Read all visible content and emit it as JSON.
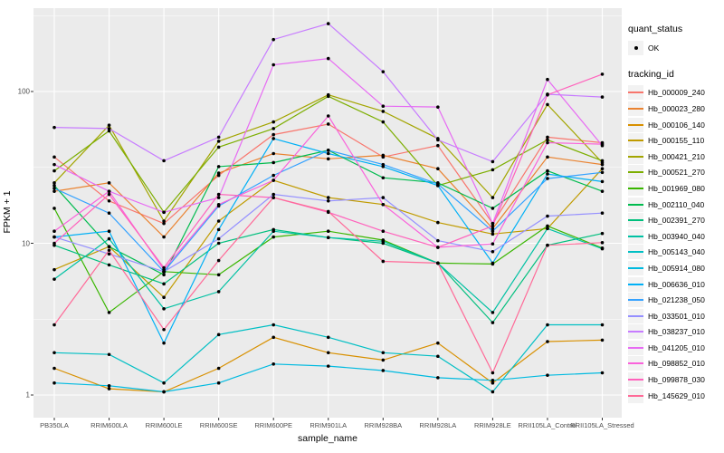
{
  "figure": {
    "background": "#FFFFFF",
    "panel_background": "#EBEBEB",
    "gridline_color": "#FFFFFF",
    "tick_color": "#333333",
    "tick_label_color": "#4D4D4D",
    "point_color": "#000000"
  },
  "y_axis": {
    "title": "FPKM + 1",
    "tick_labels": [
      "1",
      "10",
      "100"
    ]
  },
  "x_axis": {
    "title": "sample_name"
  },
  "legend": {
    "quant_status_title": "quant_status",
    "quant_status_items": [
      {
        "label": "OK",
        "marker": "black-point"
      }
    ],
    "tracking_title": "tracking_id"
  },
  "chart_data": {
    "type": "line",
    "title": "",
    "xlabel": "sample_name",
    "ylabel": "FPKM + 1",
    "y_scale": "log10",
    "y_ticks": [
      1,
      10,
      100
    ],
    "y_minor_ticks": [
      3.1623,
      31.623,
      316.23
    ],
    "ylim": [
      1,
      355
    ],
    "grid": true,
    "legend_position": "right",
    "marker": {
      "shape": "point",
      "color": "#000000",
      "meaning": "quant_status OK"
    },
    "categories": [
      "PB350LA",
      "RRIM600LA",
      "RRIM600LE",
      "RRIM600SE",
      "RRIM600PE",
      "RRIM901LA",
      "RRIM928BA",
      "RRIM928LA",
      "RRIM928LE",
      "RRII105LA_Control",
      "RRII105LA_Stressed"
    ],
    "series": [
      {
        "name": "Hb_000009_240",
        "color": "#F8766D",
        "values": [
          37,
          19,
          13.5,
          28,
          52,
          61,
          37,
          44,
          13.5,
          50,
          46
        ]
      },
      {
        "name": "Hb_000023_280",
        "color": "#EA8331",
        "values": [
          22,
          25,
          11,
          29,
          39,
          36,
          38,
          31,
          12.5,
          37,
          33
        ]
      },
      {
        "name": "Hb_000106_140",
        "color": "#D89000",
        "values": [
          1.5,
          1.1,
          1.05,
          1.5,
          2.4,
          1.9,
          1.7,
          2.2,
          1.2,
          2.25,
          2.3
        ]
      },
      {
        "name": "Hb_000155_110",
        "color": "#C09B00",
        "values": [
          6.7,
          9.5,
          4.4,
          14,
          26,
          20,
          18,
          13.7,
          11.5,
          12.5,
          31
        ]
      },
      {
        "name": "Hb_000421_210",
        "color": "#A3A500",
        "values": [
          25,
          60,
          14,
          47,
          63,
          95,
          74,
          49,
          20,
          82,
          34
        ]
      },
      {
        "name": "Hb_000521_270",
        "color": "#7CAE00",
        "values": [
          30,
          55,
          16,
          43,
          57,
          93,
          63,
          24,
          30.5,
          48,
          35
        ]
      },
      {
        "name": "Hb_001969_080",
        "color": "#39B600",
        "values": [
          17,
          3.5,
          6.5,
          6.2,
          11,
          12,
          10.5,
          7.4,
          7.3,
          13,
          9.3
        ]
      },
      {
        "name": "Hb_002110_040",
        "color": "#00BB4E",
        "values": [
          24,
          9.5,
          6.2,
          32,
          34,
          41,
          27,
          25,
          17,
          30,
          22
        ]
      },
      {
        "name": "Hb_002391_270",
        "color": "#00BF7D",
        "values": [
          9.7,
          7.2,
          5.4,
          10,
          12.3,
          10.9,
          10,
          7.4,
          3.0,
          9.7,
          11.6
        ]
      },
      {
        "name": "Hb_003940_040",
        "color": "#00C1A3",
        "values": [
          5.8,
          10.7,
          3.7,
          4.8,
          12,
          10.9,
          10.3,
          7.4,
          3.5,
          12.5,
          9.2
        ]
      },
      {
        "name": "Hb_005143_040",
        "color": "#00BFC4",
        "values": [
          1.9,
          1.85,
          1.2,
          2.5,
          2.9,
          2.4,
          1.9,
          1.8,
          1.05,
          2.9,
          2.9
        ]
      },
      {
        "name": "Hb_005914_080",
        "color": "#00BAE0",
        "values": [
          1.2,
          1.15,
          1.05,
          1.2,
          1.6,
          1.55,
          1.45,
          1.3,
          1.25,
          1.35,
          1.4
        ]
      },
      {
        "name": "Hb_006636_010",
        "color": "#00B0F6",
        "values": [
          11,
          12,
          2.2,
          12.3,
          49,
          39,
          32,
          24,
          7.4,
          28.6,
          25.5
        ]
      },
      {
        "name": "Hb_021238_050",
        "color": "#35A2FF",
        "values": [
          23,
          15.8,
          6.5,
          17.6,
          28,
          41,
          33,
          24.6,
          12,
          26.7,
          29.3
        ]
      },
      {
        "name": "Hb_033501_010",
        "color": "#9590FF",
        "values": [
          11,
          8.5,
          6.5,
          10.7,
          21,
          19,
          20,
          10.4,
          8.8,
          15.1,
          15.8
        ]
      },
      {
        "name": "Hb_038237_010",
        "color": "#C77CFF",
        "values": [
          58,
          57,
          35,
          50,
          220,
          280,
          135,
          48,
          34.5,
          96,
          92
        ]
      },
      {
        "name": "Hb_041205_010",
        "color": "#E76BF3",
        "values": [
          33,
          22,
          16,
          20,
          150,
          165,
          80,
          79,
          13.5,
          120,
          44
        ]
      },
      {
        "name": "Hb_098852_010",
        "color": "#FA62DB",
        "values": [
          12,
          22,
          6.7,
          18,
          26,
          69,
          18,
          9.4,
          9.9,
          46,
          45
        ]
      },
      {
        "name": "Hb_099878_030",
        "color": "#FF62BC",
        "values": [
          10,
          21,
          6.9,
          21,
          20,
          16,
          12,
          9.4,
          13,
          95,
          130
        ]
      },
      {
        "name": "Hb_145629_010",
        "color": "#FF6A98",
        "values": [
          2.9,
          9,
          2.7,
          7.7,
          20,
          16.2,
          7.6,
          7.4,
          1.4,
          9.7,
          10.1
        ]
      }
    ]
  }
}
